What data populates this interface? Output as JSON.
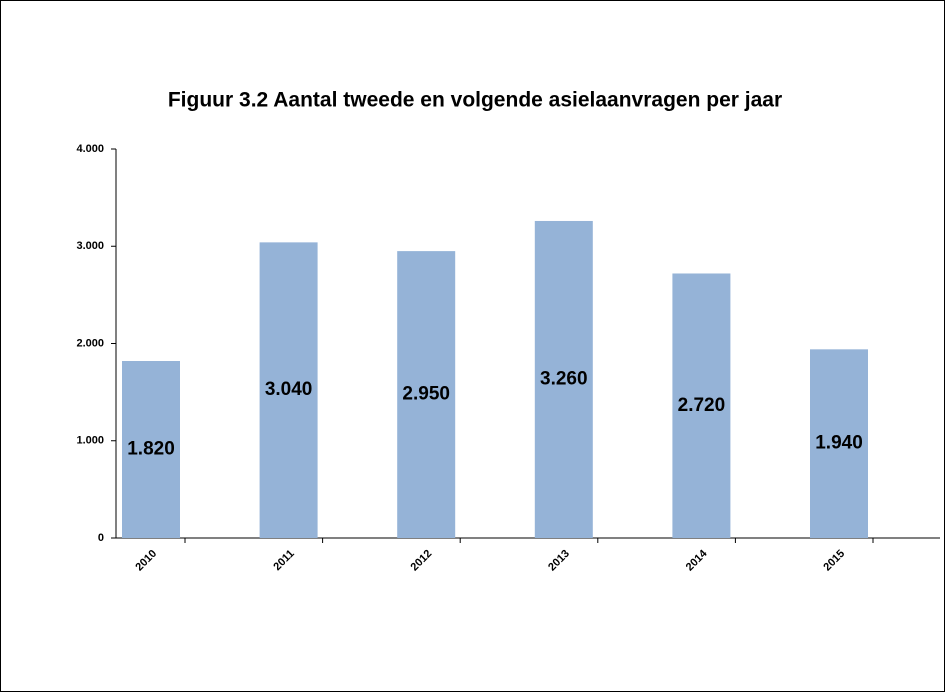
{
  "chart_data": {
    "type": "bar",
    "title": "Figuur 3.2 Aantal tweede en volgende asielaanvragen per jaar",
    "categories": [
      "2010",
      "2011",
      "2012",
      "2013",
      "2014",
      "2015"
    ],
    "values": [
      1820,
      3040,
      2950,
      3260,
      2720,
      1940
    ],
    "value_labels": [
      "1.820",
      "3.040",
      "2.950",
      "3.260",
      "2.720",
      "1.940"
    ],
    "color": "#95b3d7",
    "ylim": [
      0,
      4000
    ],
    "yticks": [
      0,
      {
        "value": 1000,
        "label": "1.000"
      },
      {
        "value": 2000,
        "label": "2.000"
      },
      {
        "value": 3000,
        "label": "3.000"
      },
      {
        "value": 4000,
        "label": "4.000"
      }
    ]
  }
}
